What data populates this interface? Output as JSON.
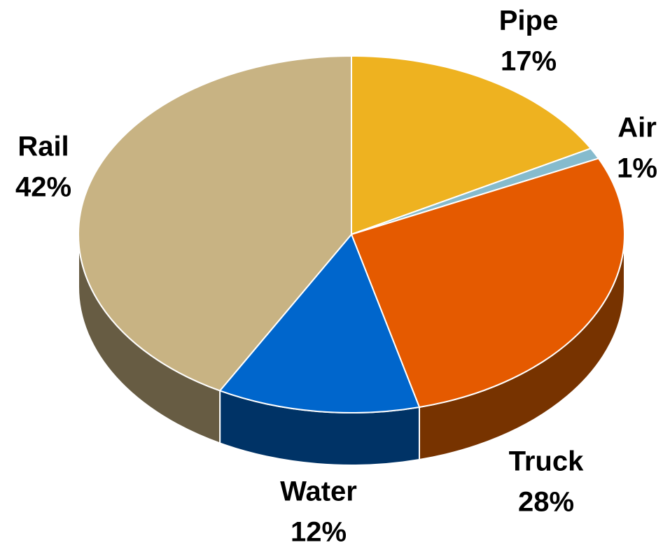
{
  "chart_data": {
    "type": "pie",
    "categories": [
      "Pipe",
      "Air",
      "Truck",
      "Water",
      "Rail"
    ],
    "values": [
      17,
      1,
      28,
      12,
      42
    ],
    "value_labels": [
      "17%",
      "1%",
      "28%",
      "12%",
      "42%"
    ],
    "colors": [
      "#eeb220",
      "#86bbcd",
      "#e55a00",
      "#0066cc",
      "#c8b383"
    ],
    "side_colors": [
      "#8a6612",
      "#4d7080",
      "#773300",
      "#003366",
      "#675c43"
    ]
  }
}
